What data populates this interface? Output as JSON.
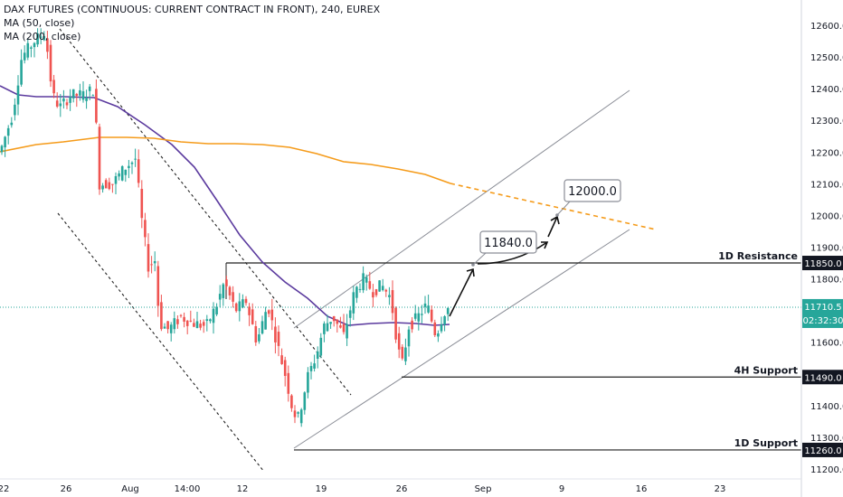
{
  "chart_data": {
    "type": "candlestick",
    "title": "DAX FUTURES (CONTINUOUS: CURRENT CONTRACT IN FRONT), 240, EUREX",
    "indicators": [
      "MA (50, close)",
      "MA (200, close)"
    ],
    "y_axis": {
      "ylim": [
        11180,
        12670
      ],
      "ticks": [
        "12600.0",
        "12500.0",
        "12400.0",
        "12300.0",
        "12200.0",
        "12100.0",
        "12000.0",
        "11900.0",
        "11800.0",
        "11700.0",
        "11600.0",
        "11500.0",
        "11400.0",
        "11300.0",
        "11200.0"
      ]
    },
    "x_axis": {
      "ticks": [
        "22",
        "26",
        "Aug",
        "14:00",
        "12",
        "19",
        "26",
        "Sep",
        "9",
        "16",
        "23"
      ]
    },
    "levels": [
      {
        "label": "1D Resistance",
        "value": "11850.0",
        "price": 11850
      },
      {
        "label": "4H Support",
        "value": "11490.0",
        "price": 11490
      },
      {
        "label": "1D Support",
        "value": "11260.0",
        "price": 11260
      }
    ],
    "current_price": {
      "value": "11710.5",
      "price": 11710.5,
      "countdown": "02:32:30"
    },
    "targets": [
      {
        "label": "11840.0",
        "price": 11840
      },
      {
        "label": "12000.0",
        "price": 12000
      }
    ],
    "colors": {
      "up": "#26a69a",
      "down": "#ef5350",
      "ma50": "#5b3a9e",
      "ma200": "#f59b1a",
      "price_line": "#26a69a",
      "level_label_bg": "#131722"
    }
  }
}
